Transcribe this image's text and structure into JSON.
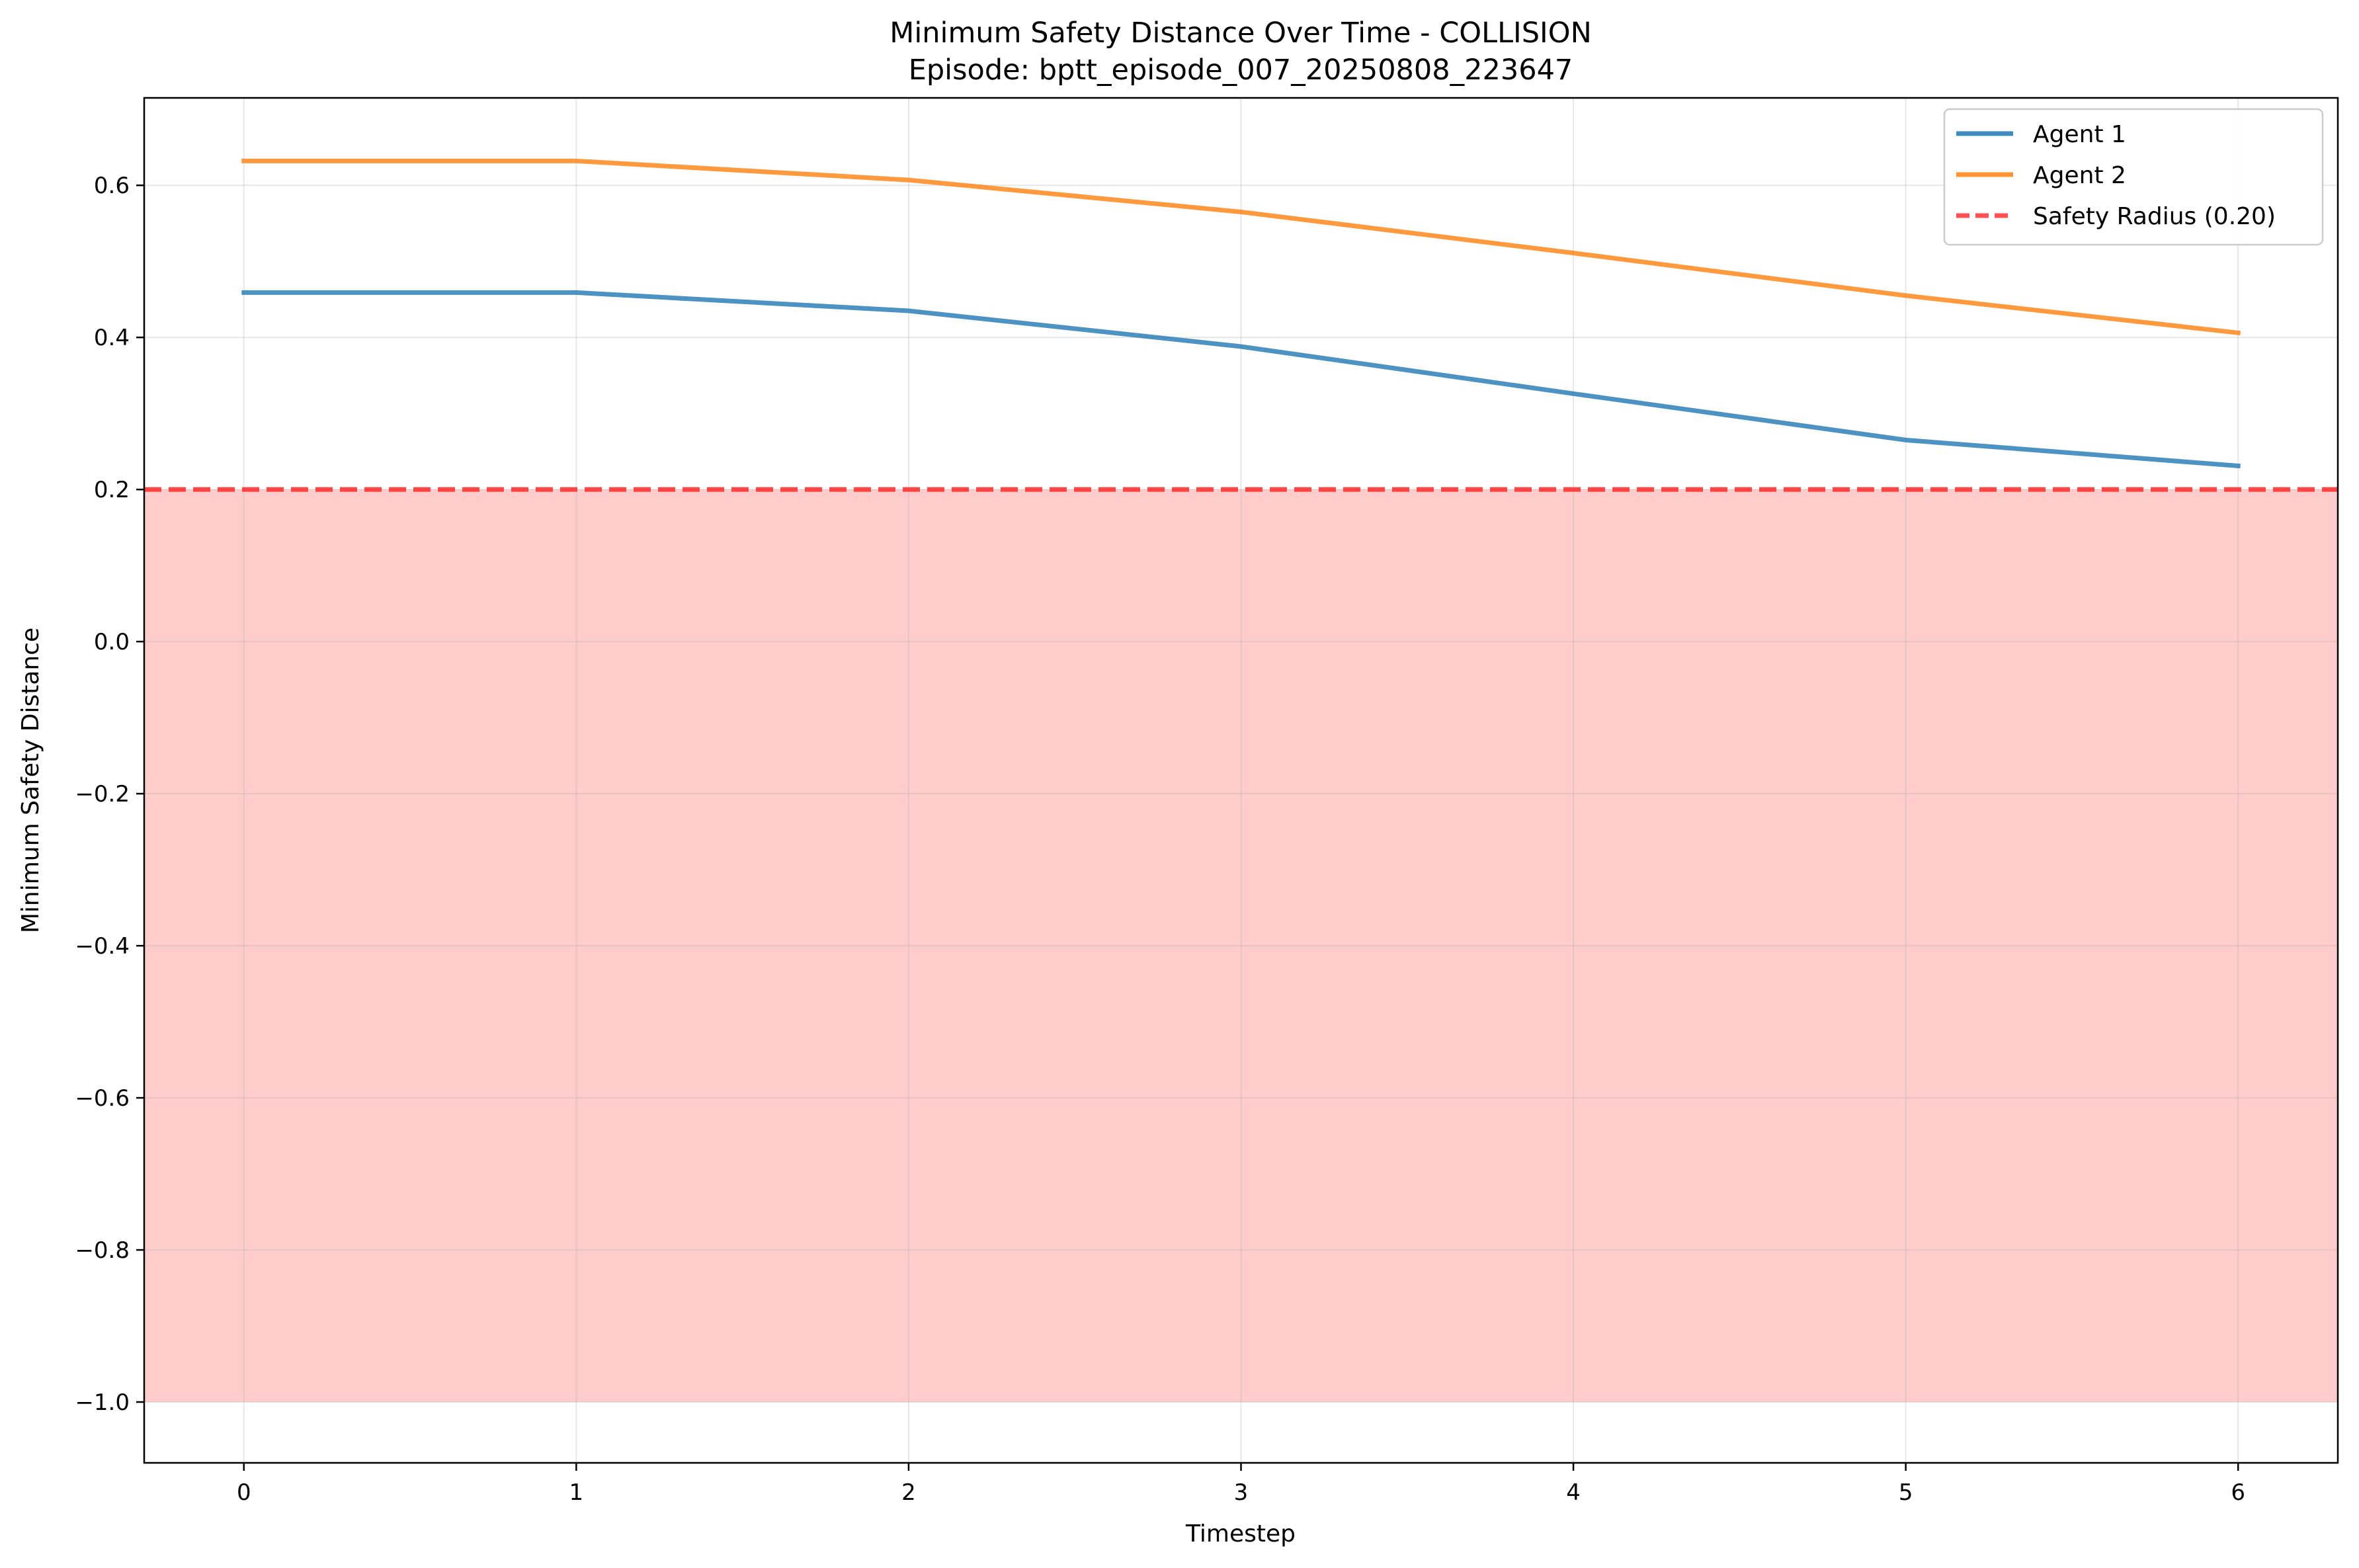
{
  "chart_data": {
    "type": "line",
    "title": "Minimum Safety Distance Over Time - COLLISION",
    "subtitle": "Episode: bptt_episode_007_20250808_223647",
    "xlabel": "Timestep",
    "ylabel": "Minimum Safety Distance",
    "xlim": [
      -0.3,
      6.3
    ],
    "ylim": [
      -1.08,
      0.715
    ],
    "x": [
      0,
      1,
      2,
      3,
      4,
      5,
      6
    ],
    "x_ticks": [
      0,
      1,
      2,
      3,
      4,
      5,
      6
    ],
    "x_tick_labels": [
      "0",
      "1",
      "2",
      "3",
      "4",
      "5",
      "6"
    ],
    "y_ticks": [
      0.6,
      0.4,
      0.2,
      0.0,
      -0.2,
      -0.4,
      -0.6,
      -0.8,
      -1.0
    ],
    "y_tick_labels": [
      "0.6",
      "0.4",
      "0.2",
      "0.0",
      "−0.2",
      "−0.4",
      "−0.6",
      "−0.8",
      "−1.0"
    ],
    "grid": true,
    "legend_position": "top-right",
    "series": [
      {
        "name": "Agent 1",
        "color": "#1f77b4",
        "values": [
          0.459,
          0.459,
          0.435,
          0.388,
          0.326,
          0.265,
          0.231
        ]
      },
      {
        "name": "Agent 2",
        "color": "#ff7f0e",
        "values": [
          0.632,
          0.632,
          0.607,
          0.565,
          0.511,
          0.455,
          0.406
        ]
      }
    ],
    "reference_line": {
      "name": "Safety Radius (0.20)",
      "y": 0.2,
      "color": "#ff3333",
      "style": "dashed"
    },
    "shaded_region": {
      "y_from": -1.0,
      "y_to": 0.2,
      "color": "#ffcccc"
    }
  }
}
